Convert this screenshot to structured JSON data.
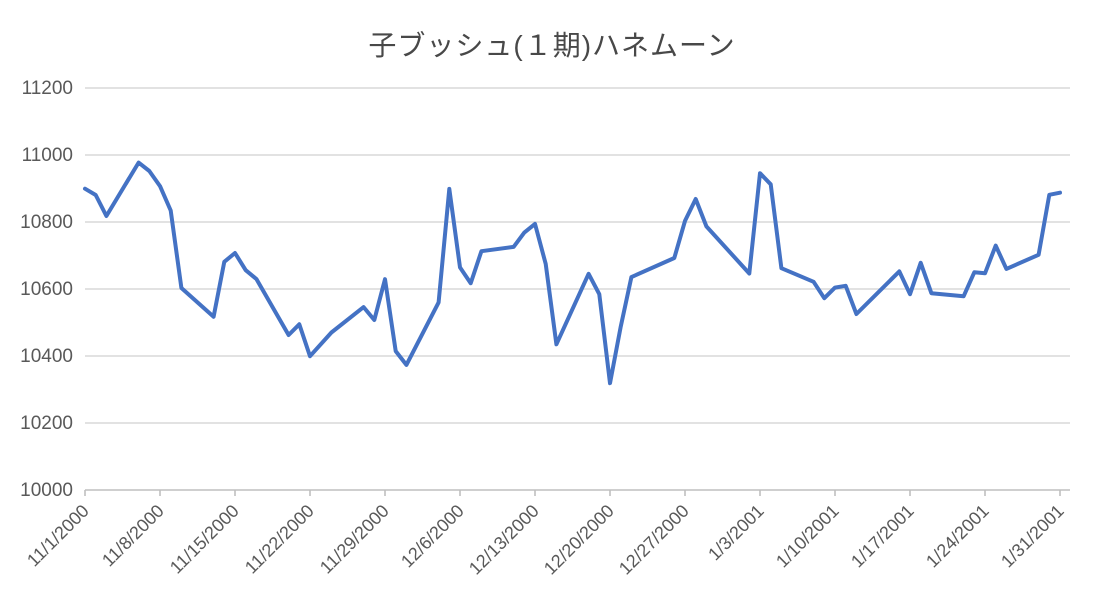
{
  "chart_data": {
    "type": "line",
    "title": "子ブッシュ(１期)ハネムーン",
    "x": [
      "11/1/2000",
      "11/2/2000",
      "11/3/2000",
      "11/6/2000",
      "11/7/2000",
      "11/8/2000",
      "11/9/2000",
      "11/10/2000",
      "11/13/2000",
      "11/14/2000",
      "11/15/2000",
      "11/16/2000",
      "11/17/2000",
      "11/20/2000",
      "11/21/2000",
      "11/22/2000",
      "11/24/2000",
      "11/27/2000",
      "11/28/2000",
      "11/29/2000",
      "11/30/2000",
      "12/1/2000",
      "12/4/2000",
      "12/5/2000",
      "12/6/2000",
      "12/7/2000",
      "12/8/2000",
      "12/11/2000",
      "12/12/2000",
      "12/13/2000",
      "12/14/2000",
      "12/15/2000",
      "12/18/2000",
      "12/19/2000",
      "12/20/2000",
      "12/21/2000",
      "12/22/2000",
      "12/26/2000",
      "12/27/2000",
      "12/28/2000",
      "12/29/2000",
      "1/2/2001",
      "1/3/2001",
      "1/4/2001",
      "1/5/2001",
      "1/8/2001",
      "1/9/2001",
      "1/10/2001",
      "1/11/2001",
      "1/12/2001",
      "1/16/2001",
      "1/17/2001",
      "1/18/2001",
      "1/19/2001",
      "1/22/2001",
      "1/23/2001",
      "1/24/2001",
      "1/25/2001",
      "1/26/2001",
      "1/29/2001",
      "1/30/2001",
      "1/31/2001"
    ],
    "values": [
      10899.47,
      10880.51,
      10817.95,
      10977.21,
      10952.18,
      10907.06,
      10834.25,
      10602.95,
      10517.26,
      10681.06,
      10707.6,
      10656.03,
      10629.87,
      10462.65,
      10494.5,
      10399.32,
      10470.23,
      10546.1,
      10507.58,
      10629.11,
      10414.49,
      10373.54,
      10560.1,
      10898.72,
      10664.38,
      10617.36,
      10712.91,
      10725.8,
      10768.27,
      10794.44,
      10674.99,
      10434.96,
      10645.42,
      10584.37,
      10318.93,
      10487.29,
      10635.56,
      10692.44,
      10803.16,
      10868.76,
      10786.85,
      10646.15,
      10945.75,
      10912.41,
      10662.01,
      10621.35,
      10572.55,
      10604.27,
      10609.55,
      10525.38,
      10652.66,
      10584.34,
      10678.28,
      10587.59,
      10578.24,
      10649.81,
      10646.97,
      10729.52,
      10659.98,
      10702.19,
      10881.2,
      10887.36
    ],
    "x_tick_labels": [
      "11/1/2000",
      "11/8/2000",
      "11/15/2000",
      "11/22/2000",
      "11/29/2000",
      "12/6/2000",
      "12/13/2000",
      "12/20/2000",
      "12/27/2000",
      "1/3/2001",
      "1/10/2001",
      "1/17/2001",
      "1/24/2001",
      "1/31/2001"
    ],
    "y_tick_labels": [
      "11200",
      "11000",
      "10800",
      "10600",
      "10400",
      "10200",
      "10000"
    ],
    "ylim": [
      10000,
      11200
    ],
    "ytick_step": 200,
    "grid": true,
    "legend": "none",
    "colors": {
      "line": "#4472C4",
      "gridline": "#D9D9D9",
      "axis": "#BFBFBF",
      "tick_label": "#595959",
      "title": "#484848",
      "background": "#FFFFFF"
    }
  }
}
